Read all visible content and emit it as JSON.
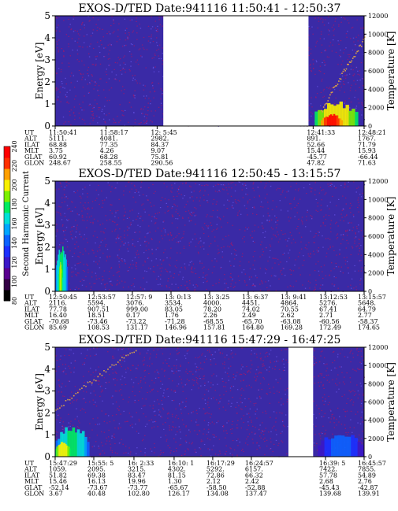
{
  "chart_data": [
    {
      "type": "heatmap",
      "title": "EXOS-D/TED   Date:941116  11:50:41 - 12:50:37",
      "ylabel": "Energy [eV]",
      "y2label": "Temperature [K]",
      "ylim": [
        0,
        5
      ],
      "y2lim": [
        0,
        12000
      ],
      "yticks": [
        "0",
        "1",
        "2",
        "3",
        "4",
        "5"
      ],
      "y2ticks": [
        "0",
        "2000",
        "4000",
        "6000",
        "8000",
        "10000",
        "12000"
      ],
      "data_gaps": [
        [
          0.35,
          0.82
        ]
      ],
      "enhancements": [
        {
          "x0": 0.84,
          "x1": 0.98,
          "e_max": 1.0,
          "level": 200
        },
        {
          "x0": 0.86,
          "x1": 0.93,
          "e_max": 0.5,
          "level": 230
        }
      ],
      "temperature_trace": {
        "x0": 0.86,
        "x1": 1.0,
        "t0": 1500,
        "t1": 9500
      },
      "orbit_table": {
        "row_labels": [
          "UT",
          "ALT",
          "ILAT",
          "MLT",
          "GLAT",
          "GLON"
        ],
        "columns": [
          {
            "pos": 0.0,
            "values": [
              "11:50:41",
              "5111.",
              "68.88",
              "3.75",
              "60.92",
              "248.67"
            ]
          },
          {
            "pos": 0.165,
            "values": [
              "11:58:17",
              "4081.",
              "77.35",
              "4.26",
              "68.28",
              "258.55"
            ]
          },
          {
            "pos": 0.33,
            "values": [
              "12: 5:45",
              "2982.",
              "84.37",
              "9.07",
              "75.81",
              "290.56"
            ]
          },
          {
            "pos": 0.835,
            "values": [
              "12:41:33",
              "891.",
              "52.66",
              "15.44",
              "-45.77",
              "47.82"
            ]
          },
          {
            "pos": 1.0,
            "values": [
              "12:48:21",
              "1767.",
              "71.79",
              "15.93",
              "-66.44",
              "71.63"
            ]
          }
        ]
      }
    },
    {
      "type": "heatmap",
      "title": "EXOS-D/TED   Date:941116  12:50:45 - 13:15:57",
      "ylabel": "Energy [eV]",
      "y2label": "Temperature [K]",
      "ylim": [
        0,
        5
      ],
      "y2lim": [
        0,
        12000
      ],
      "yticks": [
        "0",
        "1",
        "2",
        "3",
        "4",
        "5"
      ],
      "y2ticks": [
        "0",
        "2000",
        "4000",
        "6000",
        "8000",
        "10000",
        "12000"
      ],
      "data_gaps": [],
      "enhancements": [
        {
          "x0": 0.0,
          "x1": 0.04,
          "e_max": 1.9,
          "level": 170
        },
        {
          "x0": 0.01,
          "x1": 0.025,
          "e_max": 1.2,
          "level": 190
        }
      ],
      "temperature_trace": null,
      "orbit_table": {
        "row_labels": [
          "UT",
          "ALT",
          "ILAT",
          "MLT",
          "GLAT",
          "GLON"
        ],
        "columns": [
          {
            "pos": 0.0,
            "values": [
              "12:50:45",
              "2116.",
              "77.78",
              "16.40",
              "-70.68",
              "85.69"
            ]
          },
          {
            "pos": 0.125,
            "values": [
              "12:53:57",
              "5594.",
              "907.51",
              "18.51",
              "-73.46",
              "108.53"
            ]
          },
          {
            "pos": 0.25,
            "values": [
              "12:57: 9",
              "3076.",
              "999.00",
              "0.17",
              "-73.22",
              "131.17"
            ]
          },
          {
            "pos": 0.375,
            "values": [
              "13: 0:13",
              "3534.",
              "83.05",
              "1.76",
              "-71.28",
              "146.96"
            ]
          },
          {
            "pos": 0.5,
            "values": [
              "13: 3:25",
              "4000.",
              "78.20",
              "2.26",
              "-68.55",
              "157.81"
            ]
          },
          {
            "pos": 0.625,
            "values": [
              "13: 6:37",
              "4451.",
              "74.02",
              "2.49",
              "-65.70",
              "164.80"
            ]
          },
          {
            "pos": 0.75,
            "values": [
              "13: 9:41",
              "4864.",
              "70.55",
              "2.62",
              "-63.08",
              "169.28"
            ]
          },
          {
            "pos": 0.875,
            "values": [
              "13:12:53",
              "5276.",
              "67.41",
              "2.71",
              "-60.56",
              "172.49"
            ]
          },
          {
            "pos": 1.0,
            "values": [
              "13:15:57",
              "5648.",
              "64.79",
              "2.77",
              "-58.37",
              "174.65"
            ]
          }
        ]
      }
    },
    {
      "type": "heatmap",
      "title": "EXOS-D/TED   Date:941116  15:47:29 - 16:47:25",
      "ylabel": "Energy [eV]",
      "y2label": "Temperature [K]",
      "ylim": [
        0,
        5
      ],
      "y2lim": [
        0,
        12000
      ],
      "yticks": [
        "0",
        "1",
        "2",
        "3",
        "4",
        "5"
      ],
      "y2ticks": [
        "0",
        "2000",
        "4000",
        "6000",
        "8000",
        "10000",
        "12000"
      ],
      "data_gaps": [
        [
          0.755,
          0.835
        ]
      ],
      "enhancements": [
        {
          "x0": 0.0,
          "x1": 0.11,
          "e_max": 1.3,
          "level": 170
        },
        {
          "x0": 0.0,
          "x1": 0.05,
          "e_max": 0.6,
          "level": 200
        },
        {
          "x0": 0.85,
          "x1": 1.0,
          "e_max": 1.0,
          "level": 140
        }
      ],
      "temperature_trace": {
        "x0": 0.0,
        "x1": 0.26,
        "t0": 5000,
        "t1": 11800
      },
      "orbit_table": {
        "row_labels": [
          "UT",
          "ALT",
          "ILAT",
          "MLT",
          "GLAT",
          "GLON"
        ],
        "columns": [
          {
            "pos": 0.0,
            "values": [
              "15:47:29",
              "1059.",
              "51.82",
              "15.46",
              "-52.14",
              "3.67"
            ]
          },
          {
            "pos": 0.125,
            "values": [
              "15:55: 5",
              "2095.",
              "69.38",
              "16.13",
              "-73.67",
              "40.48"
            ]
          },
          {
            "pos": 0.255,
            "values": [
              "16: 2:33",
              "3215.",
              "83.47",
              "19.96",
              "-73.77",
              "102.80"
            ]
          },
          {
            "pos": 0.385,
            "values": [
              "16:10: 1",
              "4302.",
              "81.15",
              "1.30",
              "-65.67",
              "126.17"
            ]
          },
          {
            "pos": 0.51,
            "values": [
              "16:17:29",
              "5292.",
              "72.86",
              "2.12",
              "-58.50",
              "134.08"
            ]
          },
          {
            "pos": 0.635,
            "values": [
              "16:24:57",
              "6157.",
              "66.32",
              "2.42",
              "-52.88",
              "137.47"
            ]
          },
          {
            "pos": 0.875,
            "values": [
              "16:39: 5",
              "7422.",
              "57.78",
              "2.68",
              "-45.43",
              "139.68"
            ]
          },
          {
            "pos": 1.0,
            "values": [
              "16:45:57",
              "7855.",
              "54.89",
              "2.76",
              "-42.87",
              "139.91"
            ]
          }
        ]
      }
    }
  ],
  "colorbar": {
    "label": "Second Harmonic Current",
    "ticks": [
      "80",
      "100",
      "120",
      "140",
      "160",
      "180",
      "200",
      "220",
      "240"
    ],
    "colors": [
      "#000000",
      "#330044",
      "#5a0090",
      "#3b17c8",
      "#1c30ff",
      "#0c62ff",
      "#00a6ff",
      "#00e0d8",
      "#00ec60",
      "#7cf000",
      "#f7f000",
      "#ffa000",
      "#ff3000",
      "#ff0000"
    ]
  },
  "colors": {
    "background_field": "#3a2aa6",
    "noise": "#8a1c78",
    "trace": "#d9a04a"
  }
}
